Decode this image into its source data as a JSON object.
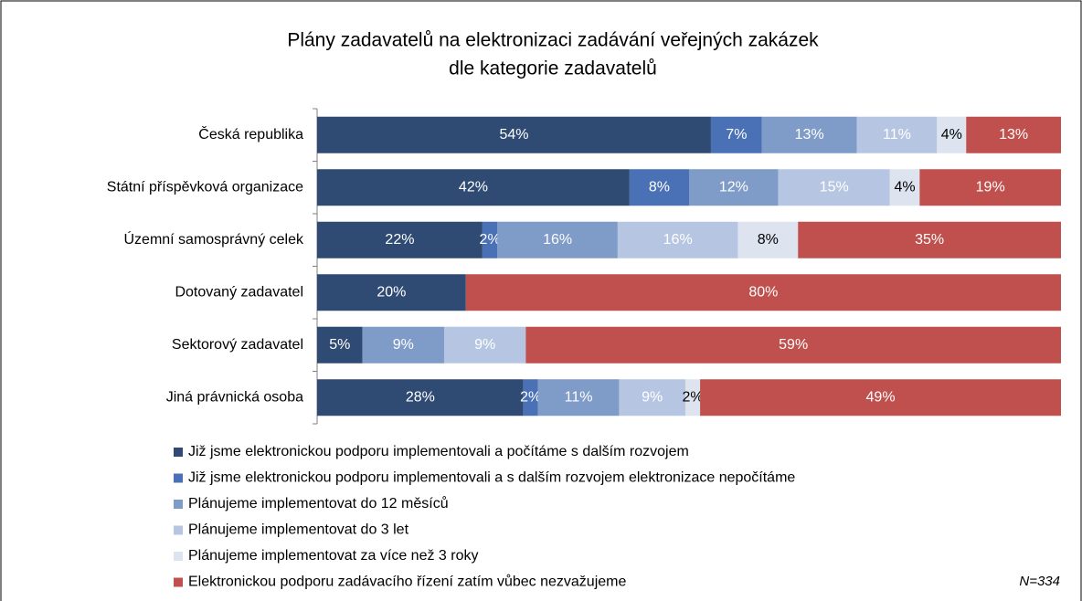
{
  "chart_data": {
    "type": "stacked_barh_100",
    "title": [
      "Plány zadavatelů na elektronizaci zadávání veřejných zakázek",
      "dle kategorie zadavatelů"
    ],
    "categories": [
      "Česká republika",
      "Státní příspěvková organizace",
      "Územní samosprávný celek",
      "Dotovaný zadavatel",
      "Sektorový zadavatel",
      "Jiná právnická osoba"
    ],
    "series": [
      {
        "name": "Již jsme elektronickou podporu implementovali a počítáme s dalším rozvojem",
        "color": "#2f4b73",
        "label_color": "#ffffff",
        "values": [
          54,
          42,
          22,
          20,
          5,
          28
        ]
      },
      {
        "name": "Již jsme elektronickou podporu implementovali a s dalším rozvojem elektronizace nepočítáme",
        "color": "#4a70b5",
        "label_color": "#ffffff",
        "values": [
          7,
          8,
          2,
          null,
          null,
          2
        ]
      },
      {
        "name": "Plánujeme implementovat do 12 měsíců",
        "color": "#7f9bc8",
        "label_color": "#ffffff",
        "values": [
          13,
          12,
          16,
          null,
          9,
          11
        ]
      },
      {
        "name": "Plánujeme implementovat do 3 let",
        "color": "#b6c6e2",
        "label_color": "#ffffff",
        "values": [
          11,
          15,
          16,
          null,
          9,
          9
        ]
      },
      {
        "name": "Plánujeme implementovat za více než 3 roky",
        "color": "#dde4ef",
        "label_color": "#000000",
        "values": [
          4,
          4,
          8,
          null,
          null,
          2
        ]
      },
      {
        "name": "Elektronickou podporu zadávacího řízení zatím vůbec nezvažujeme",
        "color": "#c0504d",
        "label_color": "#ffffff",
        "values": [
          13,
          19,
          35,
          80,
          59,
          49
        ]
      }
    ],
    "value_labels": [
      [
        "54%",
        "42%",
        "22%",
        "20%",
        "5%",
        "28%"
      ],
      [
        "7%",
        "8%",
        "2%",
        null,
        null,
        "2%"
      ],
      [
        "13%",
        "12%",
        "16%",
        null,
        "9%",
        "11%"
      ],
      [
        "11%",
        "15%",
        "16%",
        null,
        "9%",
        "9%"
      ],
      [
        "4%",
        "4%",
        "8%",
        null,
        null,
        "2%"
      ],
      [
        "13%",
        "19%",
        "35%",
        "80%",
        "59%",
        "49%"
      ]
    ],
    "annotation": "N=334"
  }
}
